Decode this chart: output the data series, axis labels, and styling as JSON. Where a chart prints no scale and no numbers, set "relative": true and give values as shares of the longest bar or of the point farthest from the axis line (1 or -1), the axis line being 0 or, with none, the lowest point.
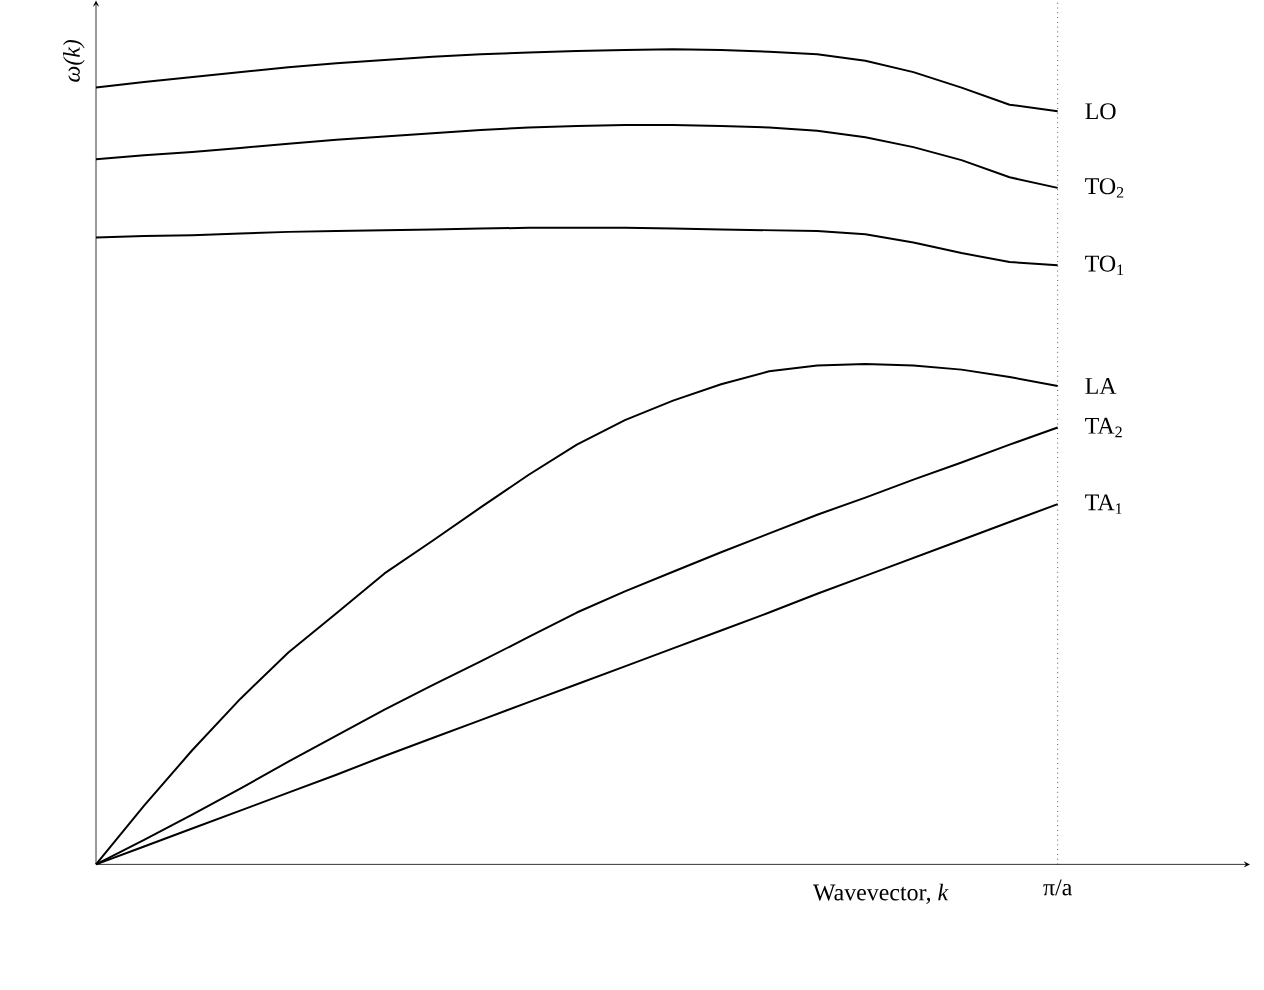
{
  "chart_data": {
    "type": "line",
    "relative": true,
    "xlabel": "Wavevector, *k*",
    "ylabel": "ω(k)",
    "marker": "none",
    "line_style": "solid",
    "annotations": [
      "π/a"
    ],
    "categories": [
      null,
      null,
      null,
      null,
      null,
      null,
      null,
      null,
      null,
      null,
      null,
      null,
      null,
      null,
      null,
      null,
      null,
      null,
      null,
      null,
      null
    ],
    "series": [
      {
        "name": "LO",
        "color": "#000000",
        "values": [
          0.953,
          0.96,
          0.966,
          0.972,
          0.978,
          0.983,
          0.987,
          0.991,
          0.994,
          0.996,
          0.998,
          0.999,
          1,
          0.999,
          0.997,
          0.994,
          0.986,
          0.972,
          0.953,
          0.932,
          0.924
        ]
      },
      {
        "name": "TO$_{2}$",
        "color": "#000000",
        "values": [
          0.865,
          0.87,
          0.874,
          0.879,
          0.884,
          0.889,
          0.893,
          0.897,
          0.901,
          0.904,
          0.906,
          0.907,
          0.907,
          0.906,
          0.904,
          0.9,
          0.892,
          0.88,
          0.864,
          0.843,
          0.83
        ]
      },
      {
        "name": "TO$_{1}$",
        "color": "#000000",
        "values": [
          0.769,
          0.771,
          0.772,
          0.774,
          0.776,
          0.777,
          0.778,
          0.779,
          0.78,
          0.781,
          0.781,
          0.781,
          0.78,
          0.779,
          0.778,
          0.777,
          0.773,
          0.763,
          0.75,
          0.739,
          0.735
        ]
      },
      {
        "name": "LA",
        "color": "#000000",
        "values": [
          0,
          0.072,
          0.14,
          0.203,
          0.26,
          0.308,
          0.357,
          0.397,
          0.438,
          0.478,
          0.515,
          0.545,
          0.569,
          0.589,
          0.605,
          0.612,
          0.614,
          0.612,
          0.607,
          0.598,
          0.587
        ]
      },
      {
        "name": "TA$_{2}$",
        "color": "#000000",
        "values": [
          0,
          0.03,
          0.061,
          0.093,
          0.126,
          0.158,
          0.19,
          0.22,
          0.249,
          0.279,
          0.309,
          0.335,
          0.359,
          0.383,
          0.406,
          0.429,
          0.45,
          0.472,
          0.493,
          0.515,
          0.536
        ]
      },
      {
        "name": "TA$_{1}$",
        "color": "#000000",
        "values": [
          0,
          0.022,
          0.044,
          0.066,
          0.088,
          0.11,
          0.133,
          0.155,
          0.177,
          0.199,
          0.221,
          0.243,
          0.265,
          0.287,
          0.309,
          0.332,
          0.354,
          0.376,
          0.398,
          0.42,
          0.442
        ]
      }
    ]
  }
}
